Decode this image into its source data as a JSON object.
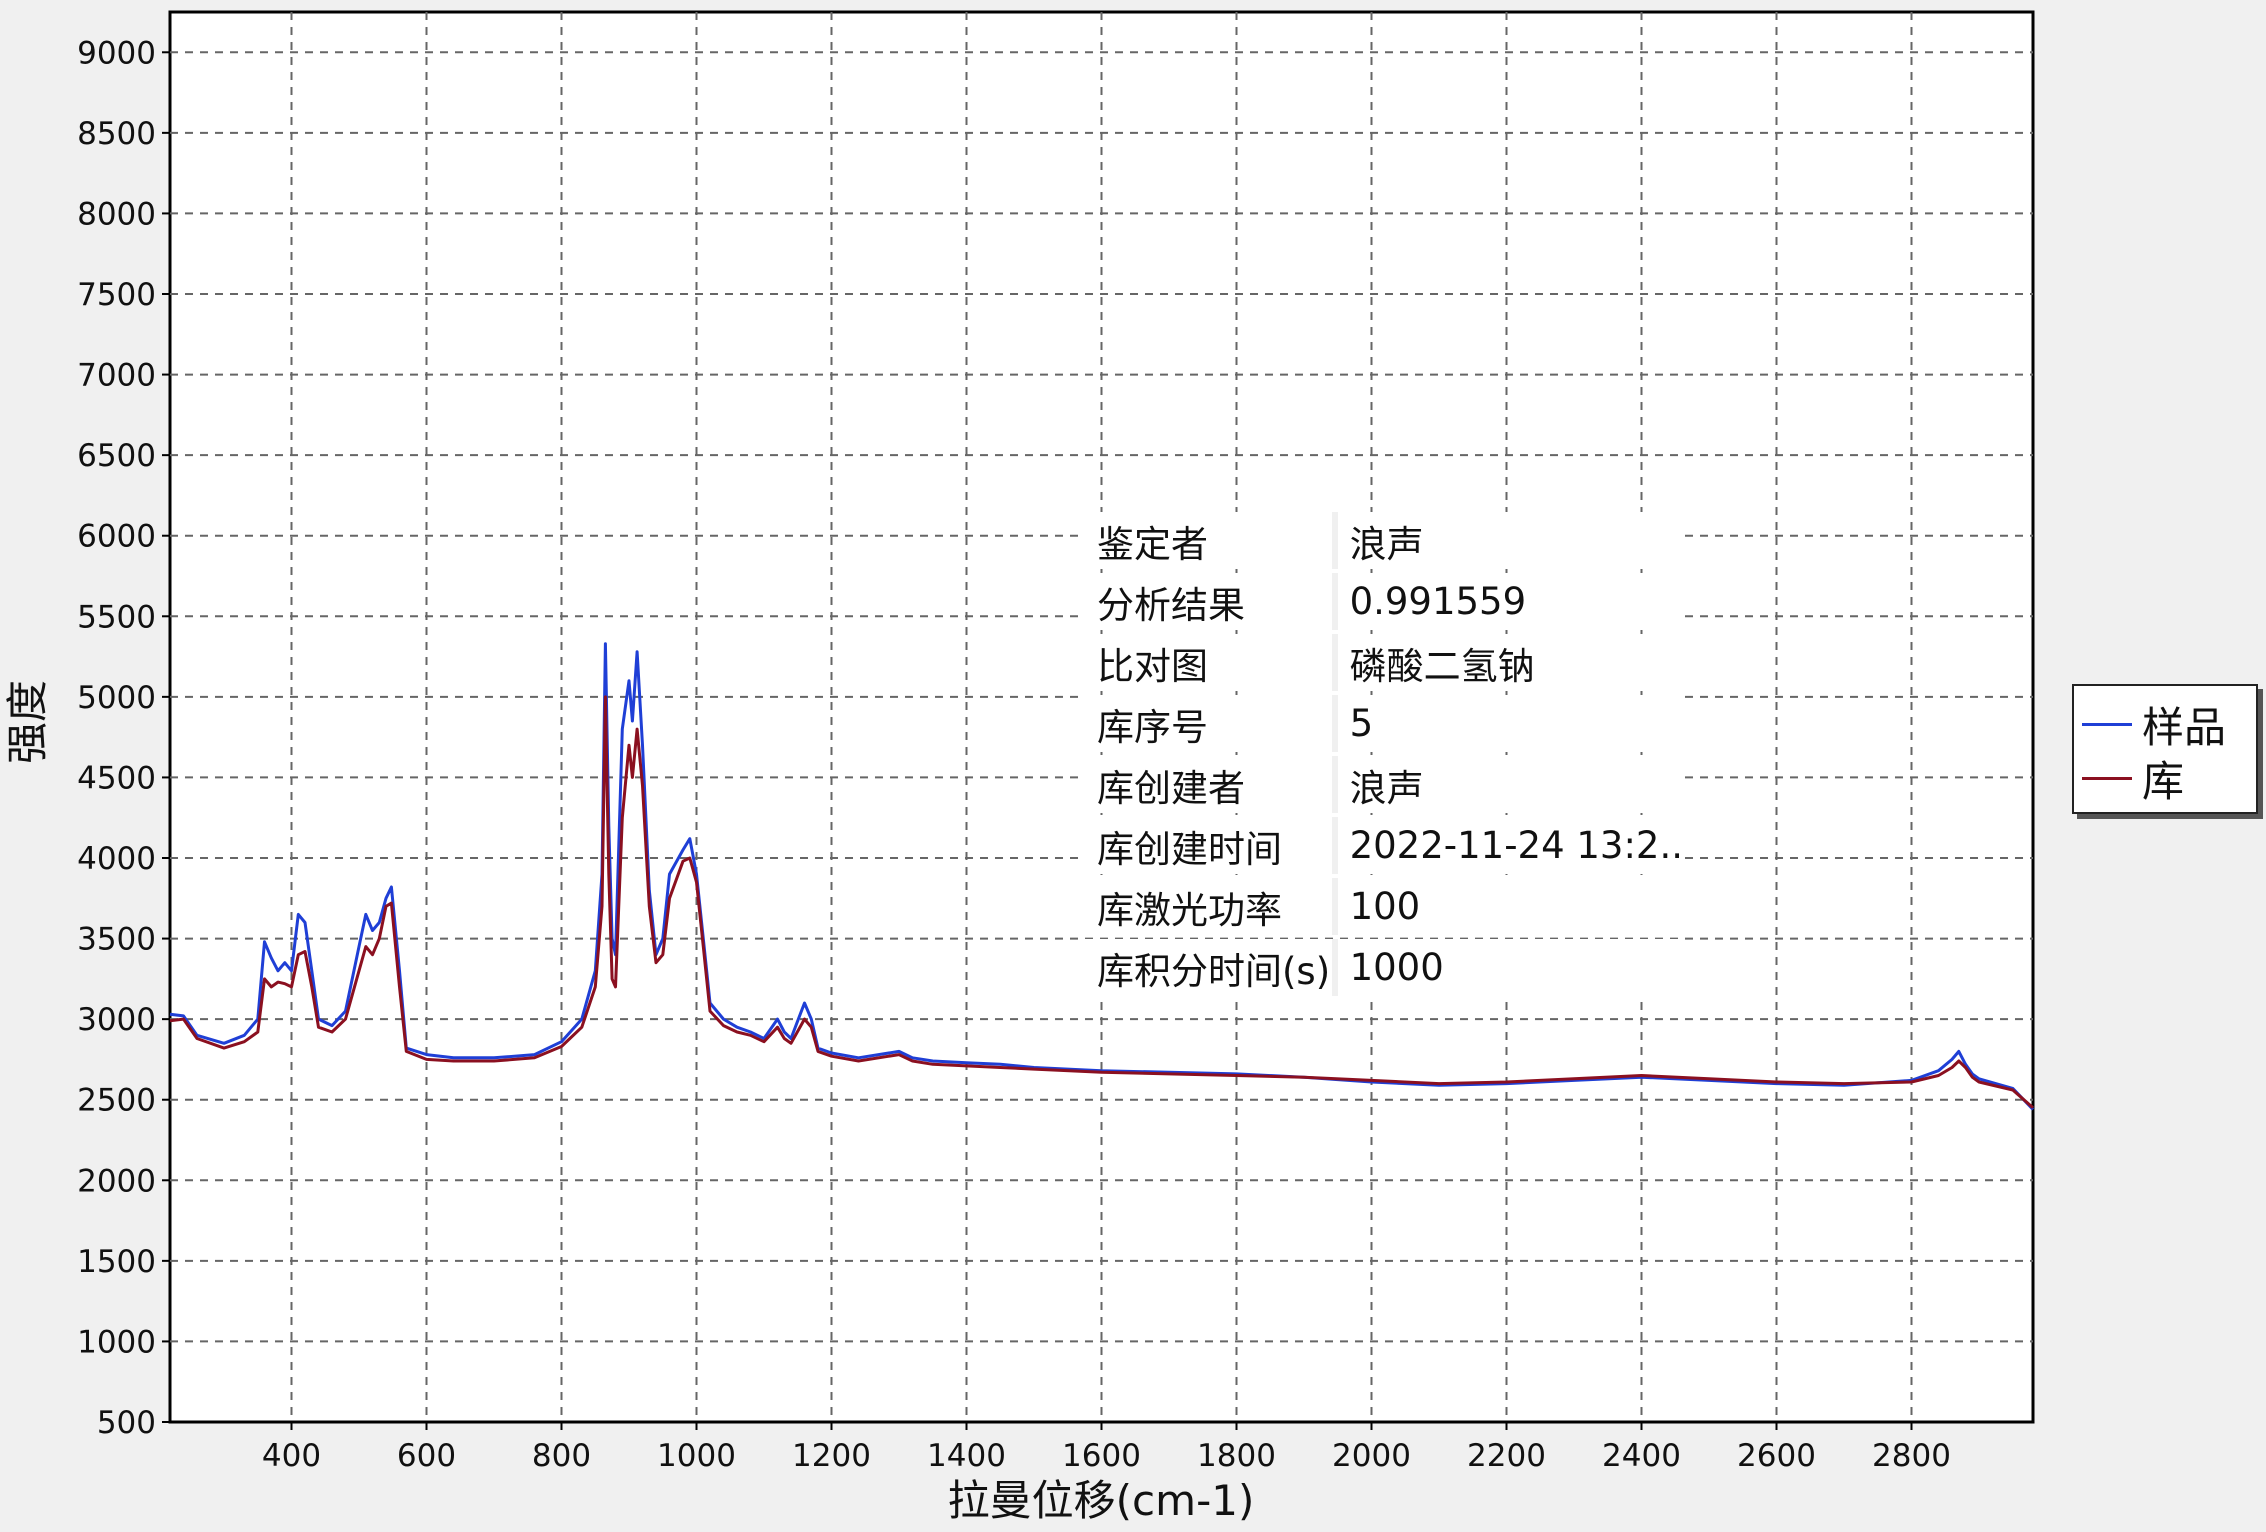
{
  "chart_data": {
    "type": "line",
    "xlabel": "拉曼位移(cm-1)",
    "ylabel": "强度",
    "xlim": [
      220,
      2980
    ],
    "ylim": [
      500,
      9250
    ],
    "x_ticks": [
      400,
      600,
      800,
      1000,
      1200,
      1400,
      1600,
      1800,
      2000,
      2200,
      2400,
      2600,
      2800
    ],
    "y_ticks": [
      500,
      1000,
      1500,
      2000,
      2500,
      3000,
      3500,
      4000,
      4500,
      5000,
      5500,
      6000,
      6500,
      7000,
      7500,
      8000,
      8500,
      9000
    ],
    "grid": true,
    "legend_position": "right",
    "series": [
      {
        "name": "样品",
        "color": "#1f3fd6",
        "x": [
          220,
          240,
          260,
          300,
          330,
          350,
          360,
          370,
          380,
          390,
          400,
          410,
          420,
          430,
          440,
          460,
          480,
          500,
          510,
          520,
          530,
          540,
          548,
          560,
          570,
          600,
          640,
          700,
          760,
          800,
          830,
          850,
          860,
          865,
          870,
          875,
          880,
          890,
          900,
          905,
          912,
          920,
          930,
          940,
          950,
          960,
          980,
          990,
          1000,
          1010,
          1020,
          1040,
          1060,
          1080,
          1100,
          1120,
          1130,
          1140,
          1160,
          1170,
          1180,
          1200,
          1240,
          1300,
          1320,
          1350,
          1400,
          1450,
          1500,
          1600,
          1700,
          1800,
          1900,
          2000,
          2100,
          2200,
          2300,
          2400,
          2500,
          2600,
          2700,
          2800,
          2840,
          2860,
          2870,
          2880,
          2890,
          2900,
          2950,
          2980
        ],
        "values": [
          3030,
          3020,
          2900,
          2850,
          2900,
          3000,
          3480,
          3380,
          3300,
          3350,
          3300,
          3650,
          3600,
          3300,
          3000,
          2960,
          3050,
          3450,
          3650,
          3550,
          3600,
          3750,
          3820,
          3300,
          2820,
          2780,
          2760,
          2760,
          2780,
          2860,
          3000,
          3300,
          3900,
          5330,
          4200,
          3500,
          3400,
          4800,
          5100,
          4850,
          5280,
          4700,
          3800,
          3400,
          3500,
          3900,
          4050,
          4120,
          3900,
          3500,
          3100,
          3000,
          2950,
          2920,
          2880,
          3000,
          2920,
          2880,
          3100,
          3000,
          2820,
          2790,
          2760,
          2800,
          2760,
          2740,
          2730,
          2720,
          2700,
          2680,
          2670,
          2660,
          2640,
          2610,
          2590,
          2600,
          2620,
          2640,
          2620,
          2600,
          2590,
          2620,
          2680,
          2750,
          2800,
          2720,
          2660,
          2630,
          2570,
          2440
        ]
      },
      {
        "name": "库",
        "color": "#8b1020",
        "x": [
          220,
          240,
          260,
          300,
          330,
          350,
          360,
          370,
          380,
          390,
          400,
          410,
          420,
          430,
          440,
          460,
          480,
          500,
          510,
          520,
          530,
          540,
          548,
          560,
          570,
          600,
          640,
          700,
          760,
          800,
          830,
          850,
          860,
          865,
          870,
          875,
          880,
          890,
          900,
          905,
          912,
          920,
          930,
          940,
          950,
          960,
          980,
          990,
          1000,
          1010,
          1020,
          1040,
          1060,
          1080,
          1100,
          1120,
          1130,
          1140,
          1160,
          1170,
          1180,
          1200,
          1240,
          1300,
          1320,
          1350,
          1400,
          1450,
          1500,
          1600,
          1700,
          1800,
          1900,
          2000,
          2100,
          2200,
          2300,
          2400,
          2500,
          2600,
          2700,
          2800,
          2840,
          2860,
          2870,
          2880,
          2890,
          2900,
          2950,
          2980
        ],
        "values": [
          2990,
          3000,
          2880,
          2820,
          2860,
          2920,
          3250,
          3200,
          3230,
          3220,
          3200,
          3400,
          3420,
          3200,
          2950,
          2920,
          3000,
          3300,
          3450,
          3400,
          3500,
          3700,
          3720,
          3200,
          2800,
          2750,
          2740,
          2740,
          2760,
          2830,
          2950,
          3200,
          3700,
          5000,
          3900,
          3250,
          3200,
          4250,
          4700,
          4500,
          4800,
          4450,
          3700,
          3350,
          3400,
          3750,
          3980,
          4000,
          3850,
          3450,
          3050,
          2960,
          2920,
          2900,
          2860,
          2950,
          2880,
          2850,
          3000,
          2950,
          2800,
          2770,
          2740,
          2780,
          2740,
          2720,
          2710,
          2700,
          2690,
          2670,
          2660,
          2650,
          2640,
          2620,
          2600,
          2610,
          2630,
          2650,
          2630,
          2610,
          2600,
          2610,
          2650,
          2700,
          2740,
          2700,
          2640,
          2610,
          2560,
          2450
        ]
      }
    ]
  },
  "info_table": [
    {
      "key": "鉴定者",
      "value": "浪声"
    },
    {
      "key": "分析结果",
      "value": "0.991559"
    },
    {
      "key": "比对图",
      "value": "磷酸二氢钠"
    },
    {
      "key": "库序号",
      "value": "5"
    },
    {
      "key": "库创建者",
      "value": "浪声"
    },
    {
      "key": "库创建时间",
      "value": "2022-11-24 13:2.."
    },
    {
      "key": "库激光功率",
      "value": "100"
    },
    {
      "key": "库积分时间(s)",
      "value": "1000"
    }
  ],
  "legend": [
    {
      "label": "样品",
      "color": "#1f3fd6"
    },
    {
      "label": "库",
      "color": "#8b1020"
    }
  ]
}
